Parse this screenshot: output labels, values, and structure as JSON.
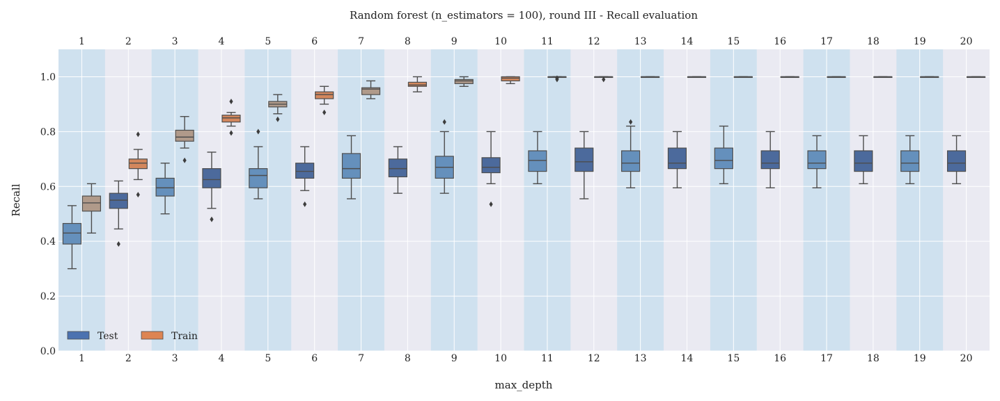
{
  "chart_data": {
    "type": "box",
    "title": "Random forest (n_estimators = 100), round III - Recall evaluation",
    "xlabel": "max_depth",
    "ylabel": "Recall",
    "ylim": [
      0.0,
      1.1
    ],
    "yticks": [
      "0.0",
      "0.2",
      "0.4",
      "0.6",
      "0.8",
      "1.0"
    ],
    "categories": [
      "1",
      "2",
      "3",
      "4",
      "5",
      "6",
      "7",
      "8",
      "9",
      "10",
      "11",
      "12",
      "13",
      "14",
      "15",
      "16",
      "17",
      "18",
      "19",
      "20"
    ],
    "grid": true,
    "alternating_column_shading": true,
    "legend": {
      "placement": "lower-left",
      "entries": [
        "Test",
        "Train"
      ]
    },
    "colors": {
      "plot_bg": "#eaeaf2",
      "band": "#cfe1ef",
      "test_dark": "#4c6a9c",
      "test_light": "#6590bc",
      "train_tan": "#b09a8a",
      "train_orange": "#d3875d",
      "whisker": "#4d4d4d",
      "legend_test": "#4c72b0",
      "legend_train": "#dd8452"
    },
    "series": [
      {
        "name": "Test",
        "boxes": [
          {
            "min": 0.3,
            "q1": 0.39,
            "median": 0.43,
            "q3": 0.465,
            "max": 0.53,
            "outliers": []
          },
          {
            "min": 0.445,
            "q1": 0.52,
            "median": 0.55,
            "q3": 0.575,
            "max": 0.62,
            "outliers": [
              0.39
            ]
          },
          {
            "min": 0.5,
            "q1": 0.565,
            "median": 0.595,
            "q3": 0.63,
            "max": 0.685,
            "outliers": []
          },
          {
            "min": 0.52,
            "q1": 0.595,
            "median": 0.625,
            "q3": 0.665,
            "max": 0.725,
            "outliers": [
              0.48
            ]
          },
          {
            "min": 0.555,
            "q1": 0.595,
            "median": 0.64,
            "q3": 0.665,
            "max": 0.745,
            "outliers": [
              0.8
            ]
          },
          {
            "min": 0.585,
            "q1": 0.63,
            "median": 0.655,
            "q3": 0.685,
            "max": 0.745,
            "outliers": [
              0.535
            ]
          },
          {
            "min": 0.555,
            "q1": 0.63,
            "median": 0.665,
            "q3": 0.72,
            "max": 0.785,
            "outliers": []
          },
          {
            "min": 0.575,
            "q1": 0.635,
            "median": 0.665,
            "q3": 0.7,
            "max": 0.745,
            "outliers": []
          },
          {
            "min": 0.575,
            "q1": 0.63,
            "median": 0.67,
            "q3": 0.71,
            "max": 0.8,
            "outliers": [
              0.835
            ]
          },
          {
            "min": 0.61,
            "q1": 0.65,
            "median": 0.67,
            "q3": 0.705,
            "max": 0.8,
            "outliers": [
              0.535
            ]
          },
          {
            "min": 0.61,
            "q1": 0.655,
            "median": 0.695,
            "q3": 0.73,
            "max": 0.8,
            "outliers": []
          },
          {
            "min": 0.555,
            "q1": 0.655,
            "median": 0.69,
            "q3": 0.74,
            "max": 0.8,
            "outliers": []
          },
          {
            "min": 0.595,
            "q1": 0.655,
            "median": 0.685,
            "q3": 0.73,
            "max": 0.82,
            "outliers": [
              0.835
            ]
          },
          {
            "min": 0.595,
            "q1": 0.665,
            "median": 0.685,
            "q3": 0.74,
            "max": 0.8,
            "outliers": []
          },
          {
            "min": 0.61,
            "q1": 0.665,
            "median": 0.695,
            "q3": 0.74,
            "max": 0.82,
            "outliers": []
          },
          {
            "min": 0.595,
            "q1": 0.665,
            "median": 0.685,
            "q3": 0.73,
            "max": 0.8,
            "outliers": []
          },
          {
            "min": 0.595,
            "q1": 0.665,
            "median": 0.685,
            "q3": 0.73,
            "max": 0.785,
            "outliers": []
          },
          {
            "min": 0.61,
            "q1": 0.655,
            "median": 0.685,
            "q3": 0.73,
            "max": 0.785,
            "outliers": []
          },
          {
            "min": 0.61,
            "q1": 0.655,
            "median": 0.685,
            "q3": 0.73,
            "max": 0.785,
            "outliers": []
          },
          {
            "min": 0.61,
            "q1": 0.655,
            "median": 0.685,
            "q3": 0.73,
            "max": 0.785,
            "outliers": []
          }
        ]
      },
      {
        "name": "Train",
        "boxes": [
          {
            "min": 0.43,
            "q1": 0.51,
            "median": 0.54,
            "q3": 0.565,
            "max": 0.61,
            "outliers": []
          },
          {
            "min": 0.625,
            "q1": 0.665,
            "median": 0.685,
            "q3": 0.7,
            "max": 0.735,
            "outliers": [
              0.57,
              0.79
            ]
          },
          {
            "min": 0.74,
            "q1": 0.765,
            "median": 0.78,
            "q3": 0.805,
            "max": 0.855,
            "outliers": [
              0.695
            ]
          },
          {
            "min": 0.82,
            "q1": 0.835,
            "median": 0.85,
            "q3": 0.86,
            "max": 0.87,
            "outliers": [
              0.795,
              0.91
            ]
          },
          {
            "min": 0.865,
            "q1": 0.89,
            "median": 0.9,
            "q3": 0.91,
            "max": 0.935,
            "outliers": [
              0.845
            ]
          },
          {
            "min": 0.9,
            "q1": 0.92,
            "median": 0.935,
            "q3": 0.945,
            "max": 0.965,
            "outliers": [
              0.87
            ]
          },
          {
            "min": 0.92,
            "q1": 0.935,
            "median": 0.955,
            "q3": 0.96,
            "max": 0.985,
            "outliers": []
          },
          {
            "min": 0.945,
            "q1": 0.965,
            "median": 0.97,
            "q3": 0.98,
            "max": 1.0,
            "outliers": []
          },
          {
            "min": 0.965,
            "q1": 0.975,
            "median": 0.985,
            "q3": 0.99,
            "max": 1.0,
            "outliers": []
          },
          {
            "min": 0.975,
            "q1": 0.985,
            "median": 0.995,
            "q3": 1.0,
            "max": 1.0,
            "outliers": []
          },
          {
            "min": 1.0,
            "q1": 1.0,
            "median": 1.0,
            "q3": 1.0,
            "max": 1.0,
            "outliers": [
              0.99,
              0.995
            ]
          },
          {
            "min": 1.0,
            "q1": 1.0,
            "median": 1.0,
            "q3": 1.0,
            "max": 1.0,
            "outliers": [
              0.99
            ]
          },
          {
            "min": 1.0,
            "q1": 1.0,
            "median": 1.0,
            "q3": 1.0,
            "max": 1.0,
            "outliers": []
          },
          {
            "min": 1.0,
            "q1": 1.0,
            "median": 1.0,
            "q3": 1.0,
            "max": 1.0,
            "outliers": []
          },
          {
            "min": 1.0,
            "q1": 1.0,
            "median": 1.0,
            "q3": 1.0,
            "max": 1.0,
            "outliers": []
          },
          {
            "min": 1.0,
            "q1": 1.0,
            "median": 1.0,
            "q3": 1.0,
            "max": 1.0,
            "outliers": []
          },
          {
            "min": 1.0,
            "q1": 1.0,
            "median": 1.0,
            "q3": 1.0,
            "max": 1.0,
            "outliers": []
          },
          {
            "min": 1.0,
            "q1": 1.0,
            "median": 1.0,
            "q3": 1.0,
            "max": 1.0,
            "outliers": []
          },
          {
            "min": 1.0,
            "q1": 1.0,
            "median": 1.0,
            "q3": 1.0,
            "max": 1.0,
            "outliers": []
          },
          {
            "min": 1.0,
            "q1": 1.0,
            "median": 1.0,
            "q3": 1.0,
            "max": 1.0,
            "outliers": []
          }
        ]
      }
    ]
  }
}
